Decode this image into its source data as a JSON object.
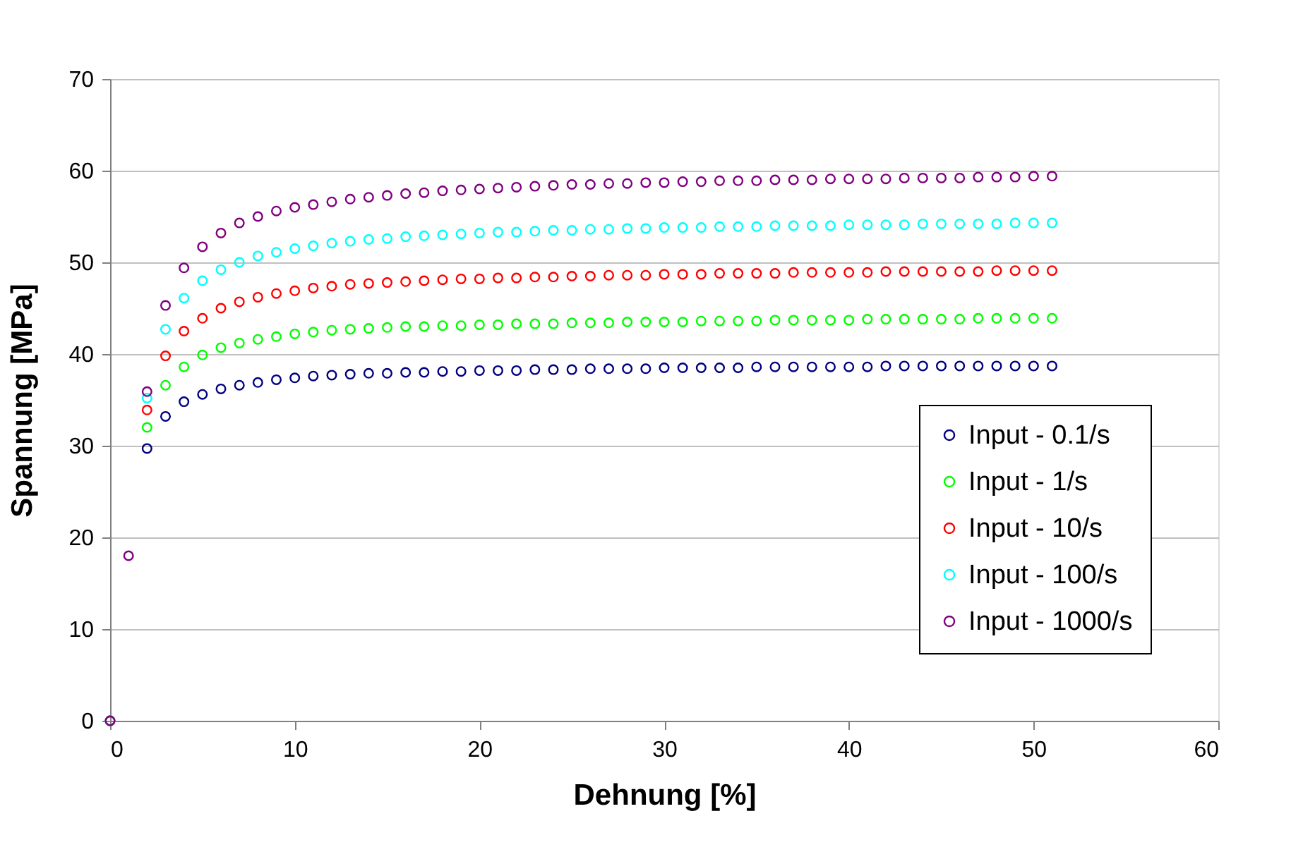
{
  "chart_data": {
    "type": "scatter",
    "xlabel": "Dehnung [%]",
    "ylabel": "Spannung [MPa]",
    "x": [
      0,
      1,
      2,
      3,
      4,
      5,
      6,
      7,
      8,
      9,
      10,
      11,
      12,
      13,
      14,
      15,
      16,
      17,
      18,
      19,
      20,
      21,
      22,
      23,
      24,
      25,
      26,
      27,
      28,
      29,
      30,
      31,
      32,
      33,
      34,
      35,
      36,
      37,
      38,
      39,
      40,
      41,
      42,
      43,
      44,
      45,
      46,
      47,
      48,
      49,
      50,
      51
    ],
    "xlim": [
      0,
      60
    ],
    "xticks": [
      0,
      10,
      20,
      30,
      40,
      50,
      60
    ],
    "ylim": [
      0,
      70
    ],
    "yticks": [
      0,
      10,
      20,
      30,
      40,
      50,
      60,
      70
    ],
    "grid": "y",
    "legend": "bottom right",
    "marker": "circle",
    "series": [
      {
        "name": "Input - 0.1/s",
        "color": "#000080",
        "values": [
          0,
          null,
          29.7,
          33.2,
          34.8,
          35.6,
          36.2,
          36.6,
          36.9,
          37.2,
          37.4,
          37.6,
          37.7,
          37.8,
          37.9,
          37.9,
          38.0,
          38.0,
          38.1,
          38.1,
          38.2,
          38.2,
          38.2,
          38.3,
          38.3,
          38.3,
          38.4,
          38.4,
          38.4,
          38.4,
          38.5,
          38.5,
          38.5,
          38.5,
          38.5,
          38.6,
          38.6,
          38.6,
          38.6,
          38.6,
          38.6,
          38.6,
          38.7,
          38.7,
          38.7,
          38.7,
          38.7,
          38.7,
          38.7,
          38.7,
          38.7,
          38.7
        ]
      },
      {
        "name": "Input - 1/s",
        "color": "#00ff00",
        "values": [
          0,
          null,
          32.0,
          36.6,
          38.6,
          39.9,
          40.7,
          41.2,
          41.6,
          41.9,
          42.2,
          42.4,
          42.6,
          42.7,
          42.8,
          42.9,
          43.0,
          43.0,
          43.1,
          43.1,
          43.2,
          43.2,
          43.3,
          43.3,
          43.3,
          43.4,
          43.4,
          43.4,
          43.5,
          43.5,
          43.5,
          43.5,
          43.6,
          43.6,
          43.6,
          43.6,
          43.7,
          43.7,
          43.7,
          43.7,
          43.7,
          43.8,
          43.8,
          43.8,
          43.8,
          43.8,
          43.8,
          43.9,
          43.9,
          43.9,
          43.9,
          43.9
        ]
      },
      {
        "name": "Input - 10/s",
        "color": "#ff0000",
        "values": [
          0,
          null,
          33.9,
          39.8,
          42.5,
          43.9,
          45.0,
          45.7,
          46.2,
          46.6,
          46.9,
          47.2,
          47.4,
          47.6,
          47.7,
          47.8,
          47.9,
          48.0,
          48.1,
          48.2,
          48.2,
          48.3,
          48.3,
          48.4,
          48.4,
          48.5,
          48.5,
          48.6,
          48.6,
          48.6,
          48.7,
          48.7,
          48.7,
          48.8,
          48.8,
          48.8,
          48.8,
          48.9,
          48.9,
          48.9,
          48.9,
          48.9,
          49.0,
          49.0,
          49.0,
          49.0,
          49.0,
          49.0,
          49.1,
          49.1,
          49.1,
          49.1
        ]
      },
      {
        "name": "Input - 100/s",
        "color": "#00ffff",
        "values": [
          0,
          null,
          35.2,
          42.7,
          46.1,
          48.0,
          49.2,
          50.0,
          50.7,
          51.1,
          51.5,
          51.8,
          52.1,
          52.3,
          52.5,
          52.6,
          52.8,
          52.9,
          53.0,
          53.1,
          53.2,
          53.3,
          53.3,
          53.4,
          53.5,
          53.5,
          53.6,
          53.6,
          53.7,
          53.7,
          53.8,
          53.8,
          53.8,
          53.9,
          53.9,
          53.9,
          54.0,
          54.0,
          54.0,
          54.0,
          54.1,
          54.1,
          54.1,
          54.1,
          54.2,
          54.2,
          54.2,
          54.2,
          54.2,
          54.3,
          54.3,
          54.3
        ]
      },
      {
        "name": "Input - 1000/s",
        "color": "#800080",
        "values": [
          0,
          18,
          35.9,
          45.3,
          49.4,
          51.7,
          53.2,
          54.3,
          55.0,
          55.6,
          56.0,
          56.3,
          56.6,
          56.9,
          57.1,
          57.3,
          57.5,
          57.6,
          57.8,
          57.9,
          58.0,
          58.1,
          58.2,
          58.3,
          58.4,
          58.5,
          58.5,
          58.6,
          58.6,
          58.7,
          58.7,
          58.8,
          58.8,
          58.9,
          58.9,
          58.9,
          59.0,
          59.0,
          59.0,
          59.1,
          59.1,
          59.1,
          59.1,
          59.2,
          59.2,
          59.2,
          59.2,
          59.3,
          59.3,
          59.3,
          59.4,
          59.4
        ]
      }
    ]
  }
}
